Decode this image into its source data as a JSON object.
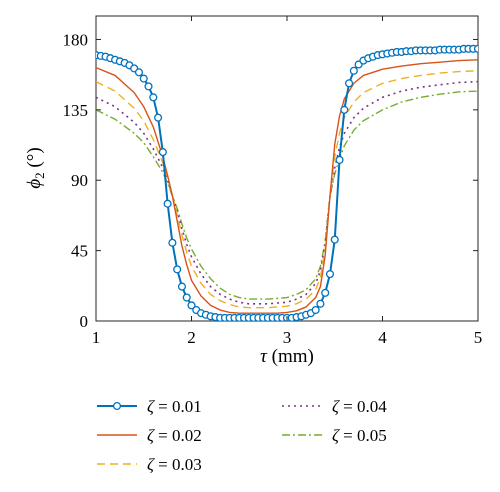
{
  "chart_data": {
    "type": "line",
    "xlabel": {
      "symbol": "τ",
      "unit": " (mm)"
    },
    "ylabel": {
      "symbol": "ϕ",
      "sub": "2",
      "unit": " (°)"
    },
    "xlim": [
      1,
      5
    ],
    "ylim": [
      0,
      195
    ],
    "xticks": [
      1,
      2,
      3,
      4,
      5
    ],
    "yticks": [
      0,
      45,
      90,
      135,
      180
    ],
    "grid": false,
    "legend_position": "bottom",
    "series": [
      {
        "name": "ζ = 0.01",
        "legend_symbol": "ζ",
        "legend_value": " = 0.01",
        "color": "#0072BD",
        "dash": "",
        "marker": "circle",
        "width": 2,
        "x": [
          1.0,
          1.05,
          1.1,
          1.15,
          1.2,
          1.25,
          1.3,
          1.35,
          1.4,
          1.45,
          1.5,
          1.55,
          1.6,
          1.65,
          1.7,
          1.75,
          1.8,
          1.85,
          1.9,
          1.95,
          2.0,
          2.05,
          2.1,
          2.15,
          2.2,
          2.25,
          2.3,
          2.35,
          2.4,
          2.45,
          2.5,
          2.55,
          2.6,
          2.65,
          2.7,
          2.75,
          2.8,
          2.85,
          2.9,
          2.95,
          3.0,
          3.05,
          3.1,
          3.15,
          3.2,
          3.25,
          3.3,
          3.35,
          3.4,
          3.45,
          3.5,
          3.55,
          3.6,
          3.65,
          3.7,
          3.75,
          3.8,
          3.85,
          3.9,
          3.95,
          4.0,
          4.05,
          4.1,
          4.15,
          4.2,
          4.25,
          4.3,
          4.35,
          4.4,
          4.45,
          4.5,
          4.55,
          4.6,
          4.65,
          4.7,
          4.75,
          4.8,
          4.85,
          4.9,
          4.95,
          5.0
        ],
        "y": [
          170,
          169.5,
          169,
          168,
          167,
          166,
          165,
          163.5,
          161.5,
          159,
          155,
          150,
          143,
          130,
          108,
          75,
          50,
          33,
          22,
          15,
          10,
          7,
          5,
          4,
          3,
          2.5,
          2,
          2,
          2,
          2,
          2,
          2,
          2,
          2,
          2,
          2,
          2,
          2,
          2,
          2,
          2,
          2,
          2.5,
          3,
          4,
          5,
          7,
          11,
          18,
          30,
          52,
          103,
          135,
          152,
          160,
          164,
          166.5,
          168,
          169,
          170,
          170.5,
          171,
          171.5,
          172,
          172,
          172.5,
          172.5,
          173,
          173,
          173,
          173,
          173,
          173.5,
          173.5,
          173.5,
          173.5,
          173.5,
          174,
          174,
          174,
          174
        ]
      },
      {
        "name": "ζ = 0.02",
        "legend_symbol": "ζ",
        "legend_value": " = 0.02",
        "color": "#D95319",
        "dash": "",
        "marker": "none",
        "width": 1.4,
        "x": [
          1.0,
          1.2,
          1.4,
          1.5,
          1.6,
          1.7,
          1.75,
          1.8,
          1.85,
          1.9,
          1.95,
          2.0,
          2.1,
          2.2,
          2.3,
          2.4,
          2.5,
          2.6,
          2.7,
          2.8,
          2.9,
          3.0,
          3.1,
          3.2,
          3.3,
          3.35,
          3.4,
          3.45,
          3.5,
          3.55,
          3.6,
          3.7,
          3.8,
          4.0,
          4.2,
          4.4,
          4.6,
          4.8,
          5.0
        ],
        "y": [
          162,
          157,
          146,
          137,
          124,
          105,
          93,
          80,
          64,
          48,
          36,
          26,
          16,
          10,
          7,
          5.5,
          5,
          5,
          5,
          5,
          5,
          5.5,
          6.5,
          9,
          15,
          22,
          42,
          80,
          113,
          131,
          142,
          152,
          157,
          161,
          163,
          164.5,
          165.5,
          166.5,
          167
        ]
      },
      {
        "name": "ζ = 0.03",
        "legend_symbol": "ζ",
        "legend_value": " = 0.03",
        "color": "#EDB120",
        "dash": "8,5",
        "marker": "none",
        "width": 1.4,
        "x": [
          1.0,
          1.2,
          1.4,
          1.5,
          1.6,
          1.7,
          1.75,
          1.8,
          1.85,
          1.9,
          1.95,
          2.0,
          2.1,
          2.2,
          2.3,
          2.4,
          2.5,
          2.6,
          2.7,
          2.8,
          2.9,
          3.0,
          3.1,
          3.2,
          3.3,
          3.35,
          3.4,
          3.45,
          3.5,
          3.55,
          3.6,
          3.7,
          3.8,
          4.0,
          4.2,
          4.4,
          4.6,
          4.8,
          5.0
        ],
        "y": [
          153,
          147,
          136,
          128,
          116,
          101,
          92,
          80,
          68,
          55,
          44,
          35,
          24,
          17,
          13,
          10.5,
          9,
          8.5,
          8.5,
          8.5,
          9,
          9.5,
          11,
          14,
          20,
          28,
          46,
          80,
          105,
          120,
          130,
          140,
          146,
          152,
          155,
          157,
          158.5,
          159.5,
          160
        ]
      },
      {
        "name": "ζ = 0.04",
        "legend_symbol": "ζ",
        "legend_value": " = 0.04",
        "color": "#7E2F8E",
        "dash": "2,4",
        "marker": "none",
        "width": 1.6,
        "x": [
          1.0,
          1.2,
          1.4,
          1.5,
          1.6,
          1.7,
          1.75,
          1.8,
          1.85,
          1.9,
          1.95,
          2.0,
          2.1,
          2.2,
          2.3,
          2.4,
          2.5,
          2.6,
          2.7,
          2.8,
          2.9,
          3.0,
          3.1,
          3.2,
          3.3,
          3.35,
          3.4,
          3.45,
          3.5,
          3.55,
          3.6,
          3.7,
          3.8,
          4.0,
          4.2,
          4.4,
          4.6,
          4.8,
          5.0
        ],
        "y": [
          143,
          137,
          127,
          120,
          110,
          98,
          90,
          80,
          70,
          59,
          49,
          41,
          30,
          22,
          17,
          14,
          12,
          11,
          11,
          11,
          11.5,
          12,
          14,
          17,
          24,
          32,
          49,
          80,
          98,
          111,
          120,
          130,
          136,
          143,
          147,
          149.5,
          151,
          152.5,
          153
        ]
      },
      {
        "name": "ζ = 0.05",
        "legend_symbol": "ζ",
        "legend_value": " = 0.05",
        "color": "#77AC30",
        "dash": "8,3,2,3",
        "marker": "none",
        "width": 1.4,
        "x": [
          1.0,
          1.2,
          1.4,
          1.5,
          1.6,
          1.7,
          1.75,
          1.8,
          1.85,
          1.9,
          1.95,
          2.0,
          2.1,
          2.2,
          2.3,
          2.4,
          2.5,
          2.6,
          2.7,
          2.8,
          2.9,
          3.0,
          3.1,
          3.2,
          3.3,
          3.35,
          3.4,
          3.45,
          3.5,
          3.55,
          3.6,
          3.7,
          3.8,
          4.0,
          4.2,
          4.4,
          4.6,
          4.8,
          5.0
        ],
        "y": [
          135,
          129,
          120,
          114,
          105,
          95,
          88,
          80,
          72,
          62,
          53,
          46,
          35,
          27,
          21,
          17,
          15,
          14,
          14,
          14,
          14.5,
          15,
          17,
          20,
          27,
          35,
          51,
          80,
          94,
          104,
          112,
          122,
          128,
          135,
          140,
          143,
          145,
          146.5,
          147
        ]
      }
    ]
  }
}
